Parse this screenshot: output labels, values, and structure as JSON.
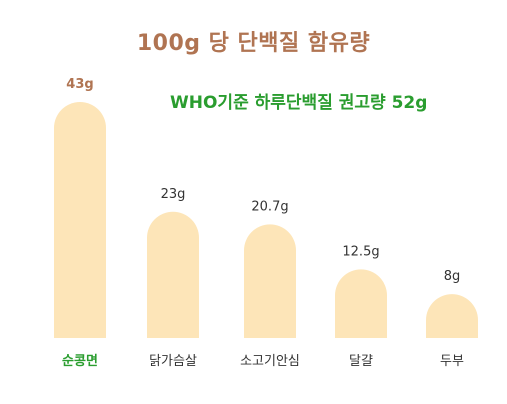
{
  "title": "100g 당 단백질 함유량",
  "annotation": "WHO기준 하루단백질 권고량 52g",
  "colors": {
    "bar": "#fde5b8",
    "title": "#b07452",
    "annotation": "#2a9d2f",
    "highlight_label": "#2a9d2f",
    "label": "#333333"
  },
  "chart_data": {
    "type": "bar",
    "title": "100g 당 단백질 함유량",
    "categories": [
      "순콩면",
      "닭가슴살",
      "소고기안심",
      "달걀",
      "두부"
    ],
    "values": [
      43,
      23,
      20.7,
      12.5,
      8
    ],
    "value_labels": [
      "43g",
      "23g",
      "20.7g",
      "12.5g",
      "8g"
    ],
    "unit": "g",
    "highlight_index": 0,
    "grid": false,
    "legend": false
  }
}
